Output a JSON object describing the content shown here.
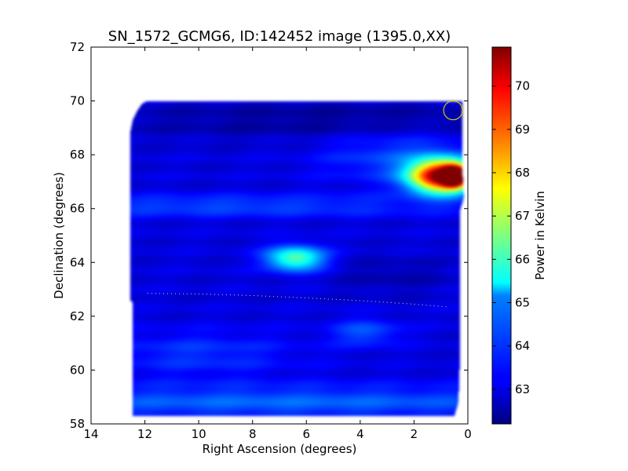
{
  "chart_data": {
    "type": "heatmap",
    "title": "SN_1572_GCMG6, ID:142452 image (1395.0,XX)",
    "xlabel": "Right Ascension (degrees)",
    "ylabel": "Declination (degrees)",
    "xlim": [
      14,
      0
    ],
    "ylim": [
      58,
      72
    ],
    "xticks": [
      14,
      12,
      10,
      8,
      6,
      4,
      2,
      0
    ],
    "yticks": [
      58,
      60,
      62,
      64,
      66,
      68,
      70,
      72
    ],
    "colorbar": {
      "label": "Power in Kelvin",
      "range": [
        62.2,
        70.9
      ],
      "ticks": [
        63,
        64,
        65,
        66,
        67,
        68,
        69,
        70
      ],
      "colormap": "jet"
    },
    "background_level": 63.0,
    "footprint_outline": [
      [
        12.45,
        58.3
      ],
      [
        12.45,
        62.5
      ],
      [
        12.55,
        62.6
      ],
      [
        12.55,
        68.8
      ],
      [
        12.45,
        69.3
      ],
      [
        12.3,
        69.6
      ],
      [
        12.1,
        69.9
      ],
      [
        11.9,
        70.0
      ],
      [
        0.2,
        70.0
      ],
      [
        0.2,
        67.4
      ],
      [
        0.15,
        66.4
      ],
      [
        0.3,
        65.9
      ],
      [
        0.3,
        60.2
      ],
      [
        0.35,
        58.8
      ],
      [
        0.5,
        58.3
      ]
    ],
    "features": [
      {
        "name": "bright-source",
        "ra": 1.0,
        "dec": 67.2,
        "sigma_ra": 0.8,
        "sigma_dec": 0.42,
        "peak_kelvin": 70.8
      },
      {
        "name": "hot-core",
        "ra": 0.5,
        "dec": 67.2,
        "sigma_ra": 0.3,
        "sigma_dec": 0.25,
        "peak_kelvin": 70.9
      },
      {
        "name": "secondary-source",
        "ra": 6.4,
        "dec": 64.15,
        "sigma_ra": 0.75,
        "sigma_dec": 0.32,
        "peak_kelvin": 66.3
      },
      {
        "name": "band-66",
        "ra": 9.0,
        "dec": 66.1,
        "sigma_ra": 6.0,
        "sigma_dec": 0.28,
        "peak_kelvin": 63.9
      },
      {
        "name": "band-59",
        "ra": 7.0,
        "dec": 58.8,
        "sigma_ra": 9.0,
        "sigma_dec": 0.45,
        "peak_kelvin": 64.1
      },
      {
        "name": "patch-61",
        "ra": 3.8,
        "dec": 61.4,
        "sigma_ra": 0.9,
        "sigma_dec": 0.35,
        "peak_kelvin": 64.0
      },
      {
        "name": "patch-60",
        "ra": 10.0,
        "dec": 60.6,
        "sigma_ra": 2.5,
        "sigma_dec": 0.6,
        "peak_kelvin": 63.7
      },
      {
        "name": "halo-68",
        "ra": 2.5,
        "dec": 67.9,
        "sigma_ra": 2.0,
        "sigma_dec": 0.7,
        "peak_kelvin": 63.9
      },
      {
        "name": "dark-69",
        "ra": 5.0,
        "dec": 69.3,
        "sigma_ra": 6.0,
        "sigma_dec": 0.5,
        "peak_kelvin": 62.4
      },
      {
        "name": "dark-63",
        "ra": 2.8,
        "dec": 63.5,
        "sigma_ra": 1.5,
        "sigma_dec": 0.5,
        "peak_kelvin": 62.6
      }
    ],
    "overlays": {
      "circle": {
        "ra": 0.55,
        "dec": 69.65,
        "radius_deg": 0.35,
        "color": "#cccc00"
      },
      "dotted_track": {
        "ra": [
          11.9,
          10,
          8,
          6,
          4,
          2,
          0.8
        ],
        "dec": [
          62.85,
          62.83,
          62.77,
          62.68,
          62.58,
          62.45,
          62.35
        ],
        "color": "#dddd44"
      }
    }
  }
}
